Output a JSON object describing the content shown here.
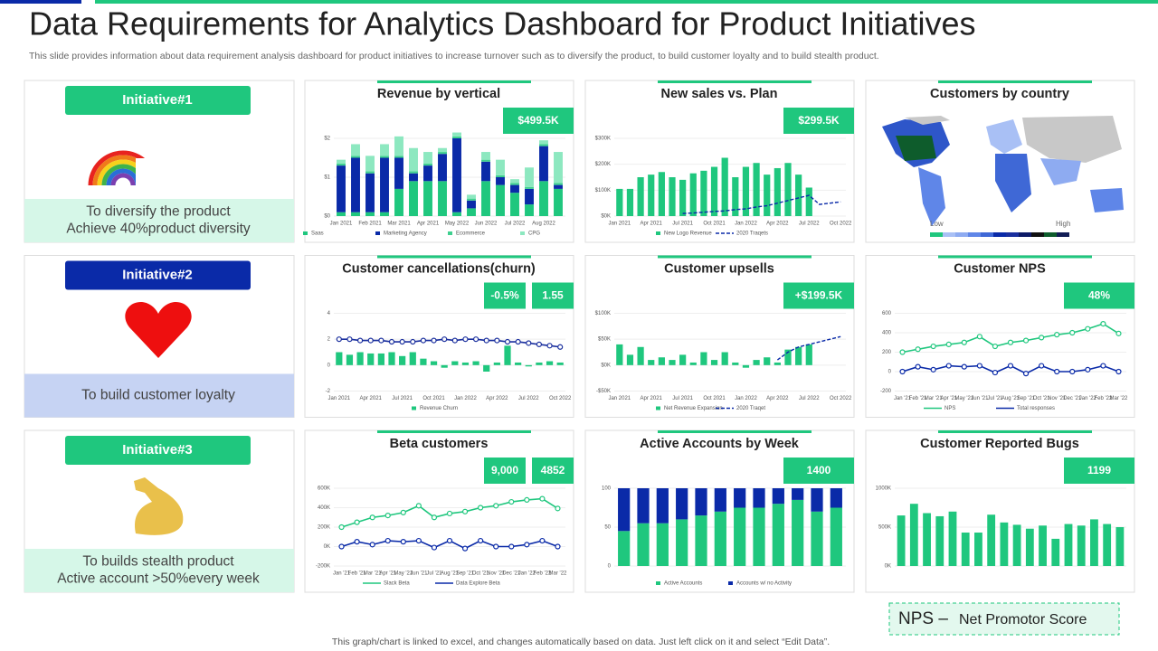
{
  "title": "Data Requirements for Analytics Dashboard for Product Initiatives",
  "subtitle": "This slide provides information about data requirement analysis dashboard for product initiatives to increase turnover such as to diversify the product, to build customer loyalty and to  build stealth product.",
  "initiatives": [
    {
      "label": "Initiative#1",
      "color": "#1fc77e",
      "band_color": "#d6f7e8",
      "lines": [
        "To diversify the product",
        "Achieve 40%product diversity"
      ]
    },
    {
      "label": "Initiative#2",
      "color": "#0a2aa8",
      "band_color": "#c6d3f3",
      "lines": [
        "To build customer loyalty"
      ]
    },
    {
      "label": "Initiative#3",
      "color": "#1fc77e",
      "band_color": "#d6f7e8",
      "lines": [
        "To builds stealth product",
        "Active account >50%every week"
      ]
    }
  ],
  "panels": [
    {
      "type": "chart",
      "title": "Revenue by vertical",
      "kpis": [
        "$499.5K"
      ],
      "stacked": true,
      "categories": [
        "Jan 2021",
        null,
        "Feb 2021",
        null,
        "Mar 2021",
        null,
        "Apr 2021",
        null,
        "May 2022",
        null,
        "Jun 2022",
        null,
        "Jul 2022",
        null,
        "Aug 2022",
        null
      ],
      "ylim": [
        0,
        2
      ],
      "yticks": [
        {
          "value": 0,
          "label": "$0"
        },
        {
          "value": 1,
          "label": "$1"
        },
        {
          "value": 2,
          "label": "$2"
        }
      ],
      "series": [
        {
          "name": "Saas",
          "kind": "bar",
          "color": "#1fc77e",
          "values": [
            0.1,
            0.1,
            0.1,
            0.1,
            0.7,
            0.9,
            0.9,
            0.9,
            0.1,
            0.2,
            0.9,
            0.8,
            0.6,
            0.3,
            0.9,
            0.7
          ]
        },
        {
          "name": "Marketing Agency",
          "kind": "bar",
          "color": "#0a2aa8",
          "values": [
            1.2,
            1.4,
            1.0,
            1.4,
            0.8,
            0.2,
            0.4,
            0.7,
            1.9,
            0.2,
            0.5,
            0.2,
            0.2,
            0.4,
            0.9,
            0.1
          ]
        },
        {
          "name": "Ecommerce",
          "kind": "bar",
          "color": "#3fd08f",
          "values": [
            0.05,
            0.05,
            0.05,
            0.05,
            0.05,
            0.05,
            0.05,
            0.05,
            0.05,
            0.05,
            0.05,
            0.05,
            0.05,
            0.05,
            0.05,
            0.05
          ]
        },
        {
          "name": "CPG",
          "kind": "bar",
          "color": "#8de8c0",
          "values": [
            0.1,
            0.3,
            0.4,
            0.3,
            0.5,
            0.6,
            0.3,
            0.1,
            0.1,
            0.1,
            0.2,
            0.4,
            0.1,
            0.5,
            0.1,
            0.8
          ]
        }
      ]
    },
    {
      "type": "chart",
      "title": "New sales vs. Plan",
      "kpis": [
        "$299.5K"
      ],
      "categories": [
        "Jan 2021",
        null,
        null,
        "Apr 2021",
        null,
        null,
        "Jul 2021",
        null,
        null,
        "Oct 2021",
        null,
        null,
        "Jan 2022",
        null,
        null,
        "Apr 2022",
        null,
        null,
        "Jul 2022",
        null,
        null,
        "Oct 2022"
      ],
      "ylim": [
        0,
        300000
      ],
      "yticks": [
        {
          "value": 0,
          "label": "$0K"
        },
        {
          "value": 100000,
          "label": "$100K"
        },
        {
          "value": 200000,
          "label": "$200K"
        },
        {
          "value": 300000,
          "label": "$300K"
        }
      ],
      "series": [
        {
          "name": "New Logo Revenue",
          "kind": "bar",
          "color": "#1fc77e",
          "values": [
            105000,
            105000,
            150000,
            160000,
            170000,
            150000,
            140000,
            165000,
            175000,
            190000,
            225000,
            150000,
            190000,
            205000,
            160000,
            185000,
            205000,
            160000,
            110000,
            null,
            null,
            null
          ]
        },
        {
          "name": "2020 Traqets",
          "kind": "line",
          "dashed": true,
          "color": "#0a2aa8",
          "values": [
            null,
            null,
            null,
            null,
            null,
            null,
            10000,
            12000,
            15000,
            18000,
            20000,
            25000,
            28000,
            35000,
            40000,
            50000,
            60000,
            70000,
            80000,
            45000,
            50000,
            55000
          ]
        }
      ]
    },
    {
      "type": "map",
      "title": "Customers by country",
      "low": "Low",
      "high": "High"
    },
    {
      "type": "chart",
      "title": "Customer cancellations(churn)",
      "kpis": [
        "-0.5%",
        "1.55"
      ],
      "categories": [
        "Jan 2021",
        null,
        null,
        "Apr 2021",
        null,
        null,
        "Jul 2021",
        null,
        null,
        "Oct 2021",
        null,
        null,
        "Jan 2022",
        null,
        null,
        "Apr 2022",
        null,
        null,
        "Jul 2022",
        null,
        null,
        "Oct 2022"
      ],
      "ylim": [
        -2,
        4
      ],
      "yticks": [
        -2,
        0,
        2,
        4
      ],
      "series": [
        {
          "name": "Revenue Churn",
          "kind": "bar",
          "color": "#1fc77e",
          "values": [
            1,
            0.8,
            1,
            0.9,
            0.9,
            1,
            0.7,
            1,
            0.5,
            0.3,
            -0.2,
            0.3,
            0.2,
            0.3,
            -0.5,
            0.2,
            1.5,
            0.2,
            -0.1,
            0.2,
            0.3,
            0.2
          ]
        },
        {
          "kind": "line",
          "markers": true,
          "color": "#1a2f9e",
          "values": [
            2,
            2,
            1.9,
            1.9,
            1.9,
            1.8,
            1.8,
            1.8,
            1.9,
            1.9,
            2,
            1.9,
            2,
            2,
            1.9,
            1.9,
            1.8,
            1.8,
            1.7,
            1.6,
            1.5,
            1.4
          ]
        }
      ]
    },
    {
      "type": "chart",
      "title": "Customer upsells",
      "kpis": [
        "+$199.5K"
      ],
      "categories": [
        "Jan 2021",
        null,
        null,
        "Apr 2021",
        null,
        null,
        "Jul 2021",
        null,
        null,
        "Oct 2021",
        null,
        null,
        "Jan 2022",
        null,
        null,
        "Apr 2022",
        null,
        null,
        "Jul 2022",
        null,
        null,
        "Oct 2022"
      ],
      "ylim": [
        -50000,
        100000
      ],
      "yticks": [
        {
          "value": -50000,
          "label": "-$50K"
        },
        {
          "value": 0,
          "label": "$0K"
        },
        {
          "value": 50000,
          "label": "$50K"
        },
        {
          "value": 100000,
          "label": "$100K"
        }
      ],
      "series": [
        {
          "name": "Net Revenue Expansion",
          "kind": "bar",
          "color": "#1fc77e",
          "values": [
            40000,
            20000,
            35000,
            10000,
            15000,
            10000,
            20000,
            5000,
            25000,
            10000,
            25000,
            5000,
            -5000,
            10000,
            15000,
            5000,
            30000,
            35000,
            40000,
            null,
            null,
            null
          ]
        },
        {
          "name": "2020 Traqet",
          "kind": "line",
          "dashed": true,
          "color": "#0a2aa8",
          "values": [
            null,
            null,
            null,
            null,
            null,
            null,
            null,
            null,
            null,
            null,
            null,
            null,
            null,
            null,
            null,
            10000,
            25000,
            35000,
            40000,
            45000,
            50000,
            55000
          ]
        }
      ]
    },
    {
      "type": "chart",
      "title": "Customer NPS",
      "kpis": [
        "48%"
      ],
      "categories": [
        "Jan '21",
        "Feb '21",
        "Mar '21",
        "Apr '21",
        "May '21",
        "Jun '21",
        "Jul '21",
        "Aug '21",
        "Sep '21",
        "Oct '21",
        "Nov '21",
        "Dec '21",
        "Jan '22",
        "Feb '22",
        "Mar '22"
      ],
      "ylim": [
        -200,
        600
      ],
      "yticks": [
        -200,
        0,
        200,
        400,
        600
      ],
      "series": [
        {
          "name": "NPS",
          "kind": "line",
          "markers": true,
          "color": "#1fc77e",
          "values": [
            200,
            230,
            260,
            280,
            300,
            360,
            260,
            300,
            320,
            350,
            380,
            400,
            440,
            492,
            392
          ]
        },
        {
          "name": "Total responses",
          "kind": "line",
          "markers": true,
          "color": "#0a2aa8",
          "values": [
            0,
            50,
            20,
            60,
            50,
            60,
            -10,
            60,
            -20,
            60,
            0,
            0,
            20,
            60,
            0
          ]
        }
      ]
    },
    {
      "type": "chart",
      "title": "Beta customers",
      "kpis": [
        "9,000",
        "4852"
      ],
      "categories": [
        "Jan '21",
        "Feb '21",
        "Mar '21",
        "Apr '21",
        "May '21",
        "Jun '21",
        "Jul '21",
        "Aug '21",
        "Sep '21",
        "Oct '21",
        "Nov '21",
        "Dec '21",
        "Jan '22",
        "Feb '22",
        "Mar '22"
      ],
      "ylim": [
        -200000,
        600000
      ],
      "yticks": [
        {
          "value": -200000,
          "label": "-200K"
        },
        {
          "value": 0,
          "label": "0K"
        },
        {
          "value": 200000,
          "label": "200K"
        },
        {
          "value": 400000,
          "label": "400K"
        },
        {
          "value": 600000,
          "label": "600K"
        }
      ],
      "series": [
        {
          "name": "Slack Beta",
          "kind": "line",
          "markers": true,
          "color": "#1fc77e",
          "values": [
            200000,
            250000,
            300000,
            320000,
            350000,
            420000,
            300000,
            340000,
            360000,
            400000,
            420000,
            460000,
            480000,
            492000,
            392000
          ]
        },
        {
          "name": "Data Explore Beta",
          "kind": "line",
          "markers": true,
          "color": "#0a2aa8",
          "values": [
            0,
            50000,
            20000,
            60000,
            50000,
            60000,
            -10000,
            60000,
            -20000,
            60000,
            0,
            0,
            20000,
            60000,
            0
          ]
        }
      ]
    },
    {
      "type": "chart",
      "title": "Active Accounts  by Week",
      "kpis": [
        "1400"
      ],
      "stacked": true,
      "categories": [
        null,
        null,
        null,
        null,
        null,
        null,
        null,
        null,
        null,
        null,
        null,
        null
      ],
      "ylim": [
        0,
        100
      ],
      "yticks": [
        0,
        50,
        100
      ],
      "series": [
        {
          "name": "Active Accounts",
          "kind": "bar",
          "color": "#1fc77e",
          "values": [
            45,
            55,
            55,
            60,
            65,
            70,
            75,
            75,
            80,
            85,
            70,
            75
          ]
        },
        {
          "name": "Accounts w/ no Activity",
          "kind": "bar",
          "color": "#0a2aa8",
          "values": [
            55,
            45,
            45,
            40,
            35,
            30,
            25,
            25,
            20,
            15,
            30,
            25
          ]
        }
      ]
    },
    {
      "type": "chart",
      "title": "Customer Reported Bugs",
      "kpis": [
        "1199"
      ],
      "categories": [
        null,
        null,
        null,
        null,
        null,
        null,
        null,
        null,
        null,
        null,
        null,
        null,
        null,
        null,
        null,
        null,
        null,
        null
      ],
      "ylim": [
        0,
        1000000
      ],
      "yticks": [
        {
          "value": 0,
          "label": "0K"
        },
        {
          "value": 500000,
          "label": "500K"
        },
        {
          "value": 1000000,
          "label": "1000K"
        }
      ],
      "series": [
        {
          "kind": "bar",
          "color": "#1fc77e",
          "values": [
            650000,
            800000,
            680000,
            640000,
            700000,
            430000,
            430000,
            660000,
            560000,
            530000,
            480000,
            520000,
            350000,
            540000,
            520000,
            600000,
            540000,
            500000
          ]
        }
      ]
    }
  ],
  "nps_note": {
    "abbr": "NPS –",
    "text": "Net Promotor Score"
  },
  "footer": "This graph/chart is linked to excel, and changes automatically based on data. Just left click on it and select “Edit Data”."
}
